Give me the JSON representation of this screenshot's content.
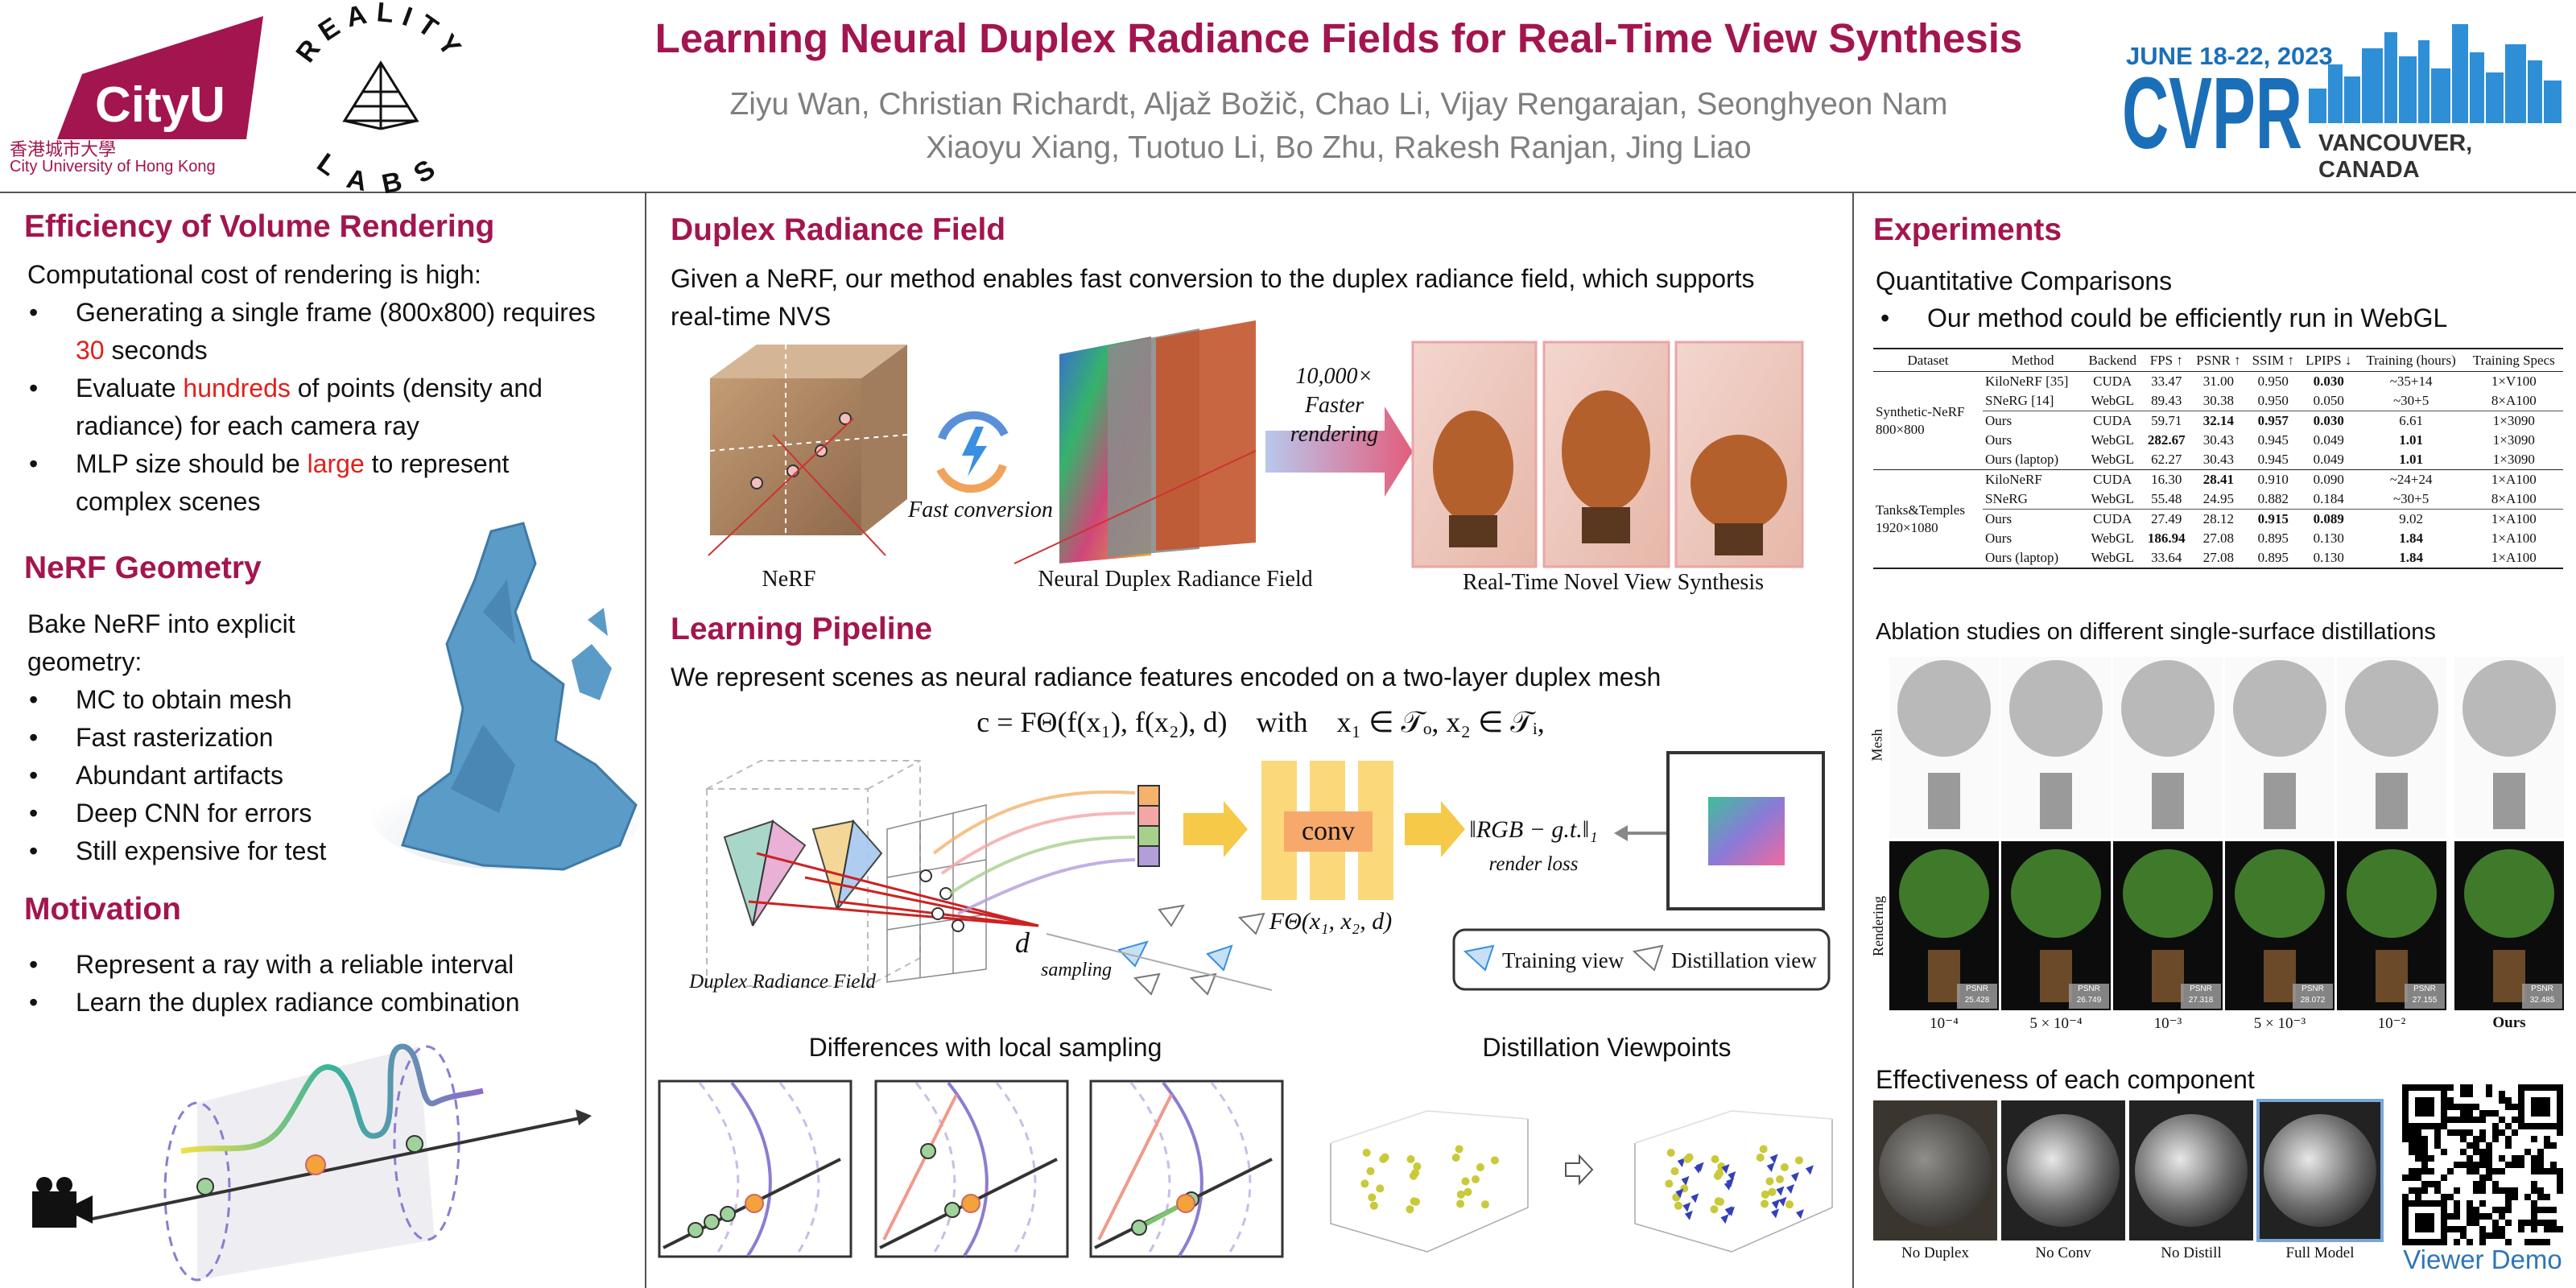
{
  "header": {
    "title": "Learning Neural Duplex Radiance Fields for Real-Time View Synthesis",
    "authors": [
      "Ziyu Wan, Christian Richardt, Aljaž Božič, Chao Li, Vijay Rengarajan, Seonghyeon Nam",
      "Xiaoyu Xiang, Tuotuo Li, Bo Zhu, Rakesh Ranjan, Jing Liao"
    ],
    "logos": {
      "cityu": {
        "mark": "CityU",
        "chinese": "香港城市大學",
        "english": "City University of Hong Kong"
      },
      "reality_labs": [
        "REALITY",
        "LABS"
      ],
      "conference": {
        "dates": "JUNE 18-22, 2023",
        "name": "CVPR",
        "location": "VANCOUVER, CANADA"
      }
    }
  },
  "efficiency": {
    "heading": "Efficiency of Volume Rendering",
    "intro": "Computational cost of rendering is high:",
    "bullets": [
      {
        "pre": "Generating a single frame (800x800) requires ",
        "em": "30",
        "post": " seconds"
      },
      {
        "pre": "Evaluate ",
        "em": "hundreds",
        "post": " of points (density and radiance) for each camera ray"
      },
      {
        "pre": "MLP size should be ",
        "em": "large",
        "post": " to represent complex scenes"
      }
    ]
  },
  "geometry": {
    "heading": "NeRF Geometry",
    "intro": "Bake NeRF into explicit geometry:",
    "bullets": [
      "MC to obtain mesh",
      "Fast rasterization",
      "Abundant artifacts",
      "Deep CNN for errors",
      "Still expensive for test"
    ]
  },
  "motivation": {
    "heading": "Motivation",
    "bullets": [
      "Represent a ray with a reliable interval",
      "Learn the duplex radiance combination"
    ]
  },
  "duplex": {
    "heading": "Duplex Radiance Field",
    "text": "Given a NeRF, our method enables fast conversion to the duplex radiance field, which supports real-time NVS",
    "figure": {
      "nerf": "NeRF",
      "conversion": "Fast conversion",
      "duplex": "Neural Duplex Radiance Field",
      "speedup": "10,000× Faster rendering",
      "nvs": "Real-Time Novel View Synthesis"
    }
  },
  "pipeline": {
    "heading": "Learning Pipeline",
    "text": "We represent scenes as neural radiance features encoded on a two-layer duplex mesh",
    "equation": "c = FΘ(f(x₁), f(x₂), d)    with    x₁ ∈ 𝒯ₒ, x₂ ∈ 𝒯ᵢ,",
    "figure": {
      "duplex": "Duplex Radiance Field",
      "d": "d",
      "sampling": "sampling",
      "conv": "conv",
      "function": "FΘ(x₁, x₂, d)",
      "loss": "‖RGB − g.t.‖₁",
      "loss_label": "render loss",
      "legend": [
        "Training view",
        "Distillation view"
      ]
    },
    "local_sampling": "Differences with local sampling",
    "viewpoints": "Distillation Viewpoints"
  },
  "experiments": {
    "heading": "Experiments",
    "subheading": "Quantitative Comparisons",
    "bullet": "Our method could be efficiently run in WebGL",
    "table": {
      "columns": [
        "Dataset",
        "Method",
        "Backend",
        "FPS ↑",
        "PSNR ↑",
        "SSIM ↑",
        "LPIPS ↓",
        "Training (hours)",
        "Training Specs"
      ],
      "groups": [
        {
          "dataset": "Synthetic-NeRF 800×800",
          "rows": [
            [
              "KiloNeRF [35]",
              "CUDA",
              "33.47",
              "31.00",
              "0.950",
              "0.030",
              "~35+14",
              "1×V100"
            ],
            [
              "SNeRG [14]",
              "WebGL",
              "89.43",
              "30.38",
              "0.950",
              "0.050",
              "~30+5",
              "8×A100"
            ],
            [
              "Ours",
              "CUDA",
              "59.71",
              "32.14",
              "0.957",
              "0.030",
              "6.61",
              "1×3090"
            ],
            [
              "Ours",
              "WebGL",
              "282.67",
              "30.43",
              "0.945",
              "0.049",
              "1.01",
              "1×3090"
            ],
            [
              "Ours (laptop)",
              "WebGL",
              "62.27",
              "30.43",
              "0.945",
              "0.049",
              "1.01",
              "1×3090"
            ]
          ]
        },
        {
          "dataset": "Tanks&Temples 1920×1080",
          "rows": [
            [
              "KiloNeRF",
              "CUDA",
              "16.30",
              "28.41",
              "0.910",
              "0.090",
              "~24+24",
              "1×A100"
            ],
            [
              "SNeRG",
              "WebGL",
              "55.48",
              "24.95",
              "0.882",
              "0.184",
              "~30+5",
              "8×A100"
            ],
            [
              "Ours",
              "CUDA",
              "27.49",
              "28.12",
              "0.915",
              "0.089",
              "9.02",
              "1×A100"
            ],
            [
              "Ours",
              "WebGL",
              "186.94",
              "27.08",
              "0.895",
              "0.130",
              "1.84",
              "1×A100"
            ],
            [
              "Ours (laptop)",
              "WebGL",
              "33.64",
              "27.08",
              "0.895",
              "0.130",
              "1.84",
              "1×A100"
            ]
          ]
        }
      ]
    },
    "ablation": {
      "title": "Ablation studies on different single-surface distillations",
      "row_labels": [
        "Mesh",
        "Rendering"
      ],
      "columns": [
        "10⁻⁴",
        "5 × 10⁻⁴",
        "10⁻³",
        "5 × 10⁻³",
        "10⁻²",
        "Ours"
      ],
      "psnr_label": "PSNR",
      "psnr": [
        "25.428",
        "26.749",
        "27.318",
        "28.072",
        "27.155",
        "32.485"
      ]
    },
    "components": {
      "title": "Effectiveness of each component",
      "labels": [
        "No Duplex",
        "No Conv",
        "No Distill",
        "Full Model"
      ]
    },
    "demo": "Viewer Demo"
  }
}
